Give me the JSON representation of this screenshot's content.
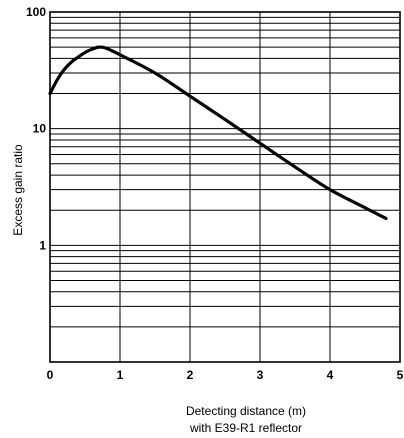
{
  "chart_data": {
    "type": "line",
    "title": "",
    "xlabel_lines": [
      "Detecting distance (m)",
      "with E39-R1 reflector"
    ],
    "ylabel": "Excess gain ratio",
    "xlim": [
      0,
      5
    ],
    "ylim": [
      0.1,
      100
    ],
    "yscale": "log",
    "grid": true,
    "x_ticks": [
      0,
      1,
      2,
      3,
      4,
      5
    ],
    "x_tick_labels": [
      "0",
      "1",
      "2",
      "3",
      "4",
      "5"
    ],
    "y_ticks": [
      1,
      10,
      100
    ],
    "y_tick_labels": [
      "1",
      "10",
      "100"
    ],
    "series": [
      {
        "x": [
          0,
          0.1,
          0.2,
          0.3,
          0.4,
          0.5,
          0.6,
          0.7,
          0.8,
          1.0,
          1.5,
          2.0,
          2.5,
          3.0,
          3.5,
          4.0,
          4.5,
          4.8
        ],
        "y": [
          20,
          26,
          32,
          37,
          41,
          45,
          48,
          50,
          49,
          43,
          30,
          19,
          12,
          7.5,
          4.7,
          3.0,
          2.1,
          1.7
        ]
      }
    ]
  }
}
